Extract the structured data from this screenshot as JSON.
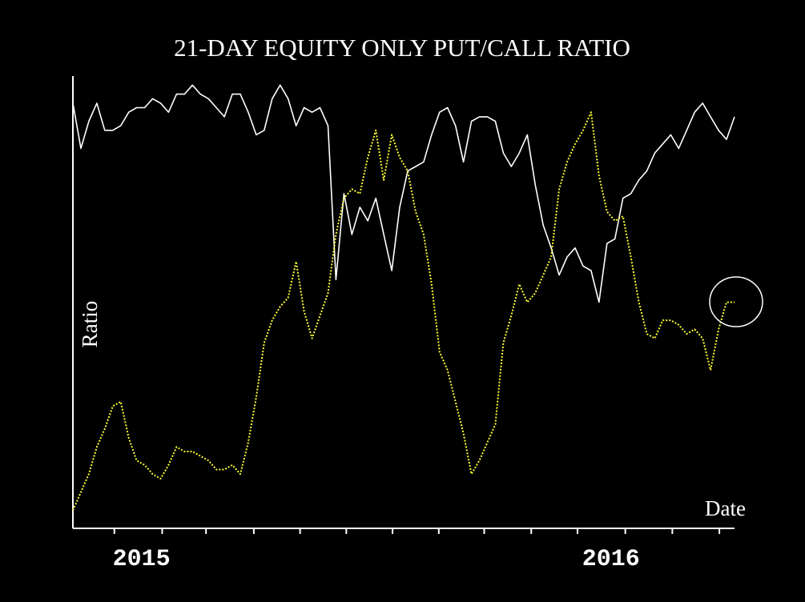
{
  "chart_data": {
    "type": "line",
    "title": "21-DAY EQUITY ONLY PUT/CALL RATIO",
    "y_label": "Ratio",
    "x_label": "Date",
    "xlim": [
      0,
      83
    ],
    "ylim": [
      0,
      100
    ],
    "x_tick_marks": [
      5.2,
      11.2,
      16.7,
      22.7,
      28.5,
      34.3,
      40.1,
      45.9,
      51.6,
      57.5,
      63.3,
      69.3,
      75.2,
      81.1
    ],
    "x_labels": [
      {
        "value": 8.6,
        "label": "2015"
      },
      {
        "value": 67.5,
        "label": "2016"
      }
    ],
    "series": [
      {
        "color": "#ffffff",
        "values": [
          94,
          84,
          90,
          94,
          88,
          88,
          89,
          92,
          93,
          93,
          95,
          94,
          92,
          96,
          96,
          98,
          96,
          95,
          93,
          91,
          96,
          96,
          92,
          87,
          88,
          95,
          98,
          95,
          89,
          93,
          92,
          93,
          89,
          55,
          74,
          65,
          71,
          68,
          73,
          65,
          57,
          71,
          79,
          80,
          81,
          87,
          92,
          93,
          89,
          81,
          90,
          91,
          91,
          90,
          83,
          80,
          83,
          87,
          76,
          67,
          62,
          56,
          60,
          62,
          58,
          57,
          50,
          63,
          64,
          73,
          74,
          77,
          79,
          83,
          85,
          87,
          84,
          88,
          92,
          94,
          91,
          88,
          86,
          91
        ]
      },
      {
        "color": "#ffff33",
        "values": [
          4,
          8,
          12,
          18,
          22,
          27,
          28,
          20,
          15,
          14,
          12,
          11,
          14,
          18,
          17,
          17,
          16,
          15,
          13,
          13,
          14,
          12,
          19,
          29,
          41,
          46,
          49,
          51,
          59,
          48,
          42,
          47,
          52,
          65,
          73,
          75,
          74,
          82,
          88,
          77,
          87,
          82,
          79,
          70,
          65,
          54,
          39,
          35,
          28,
          21,
          12,
          15,
          19,
          23,
          41,
          47,
          54,
          50,
          52,
          56,
          60,
          75,
          81,
          85,
          88,
          92,
          78,
          70,
          68,
          69,
          60,
          50,
          43,
          42,
          46,
          46,
          45,
          43,
          44,
          42,
          35,
          44,
          50,
          50
        ]
      }
    ]
  }
}
